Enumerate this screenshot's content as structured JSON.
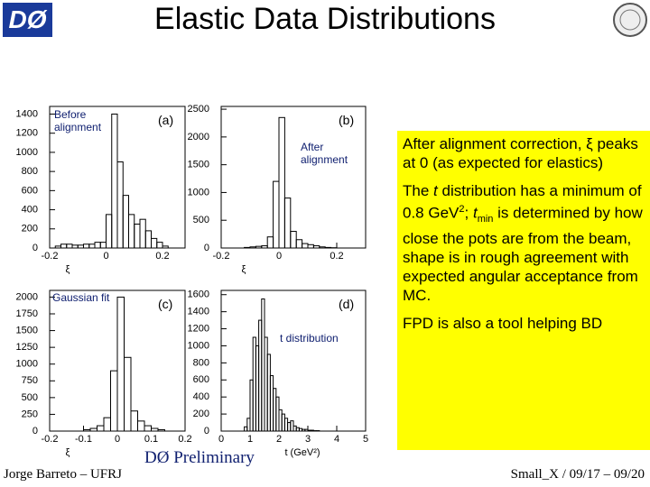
{
  "header": {
    "logo_text": "DØ",
    "title": "Elastic Data Distributions"
  },
  "chart_data": [
    {
      "type": "histogram",
      "xlabel": "ξ",
      "annotations": [
        "Before alignment",
        "(a)"
      ],
      "bins": [
        -0.2,
        -0.18,
        -0.16,
        -0.14,
        -0.12,
        -0.1,
        -0.08,
        -0.06,
        -0.04,
        -0.02,
        0,
        0.02,
        0.04,
        0.06,
        0.08,
        0.1,
        0.12,
        0.14,
        0.16,
        0.18,
        0.2,
        0.22,
        0.24,
        0.26,
        0.28
      ],
      "values": [
        0,
        20,
        40,
        40,
        30,
        30,
        40,
        40,
        60,
        60,
        350,
        1400,
        900,
        550,
        350,
        250,
        300,
        180,
        100,
        60,
        20,
        0,
        0,
        0
      ],
      "xlim": [
        -0.2,
        0.28
      ],
      "ylim": [
        0,
        1480
      ],
      "xticks": [
        -0.2,
        0,
        0.2
      ],
      "yticks": [
        0,
        200,
        400,
        600,
        800,
        1000,
        1200,
        1400
      ]
    },
    {
      "type": "histogram",
      "xlabel": "ξ",
      "annotations": [
        "(b)",
        "After alignment"
      ],
      "bins": [
        -0.2,
        -0.18,
        -0.16,
        -0.14,
        -0.12,
        -0.1,
        -0.08,
        -0.06,
        -0.04,
        -0.02,
        0,
        0.02,
        0.04,
        0.06,
        0.08,
        0.1,
        0.12,
        0.14,
        0.16,
        0.18,
        0.2,
        0.22,
        0.24,
        0.26,
        0.28,
        0.3
      ],
      "values": [
        0,
        0,
        0,
        0,
        10,
        20,
        30,
        40,
        200,
        1200,
        2350,
        900,
        300,
        150,
        80,
        60,
        40,
        20,
        10,
        5,
        0,
        0,
        0,
        0,
        0
      ],
      "xlim": [
        -0.2,
        0.3
      ],
      "ylim": [
        0,
        2550
      ],
      "xticks": [
        -0.2,
        0,
        0.2
      ],
      "yticks": [
        0,
        500,
        1000,
        1500,
        2000,
        2500
      ]
    },
    {
      "type": "histogram",
      "xlabel": "ξ",
      "annotations": [
        "Gaussian fit",
        "(c)"
      ],
      "bins": [
        -0.2,
        -0.18,
        -0.16,
        -0.14,
        -0.12,
        -0.1,
        -0.08,
        -0.06,
        -0.04,
        -0.02,
        0,
        0.02,
        0.04,
        0.06,
        0.08,
        0.1,
        0.12,
        0.14,
        0.16,
        0.18,
        0.2
      ],
      "values": [
        0,
        0,
        0,
        0,
        0,
        20,
        40,
        80,
        200,
        900,
        2000,
        1100,
        300,
        150,
        80,
        40,
        20,
        0,
        0,
        0
      ],
      "xlim": [
        -0.2,
        0.2
      ],
      "ylim": [
        0,
        2100
      ],
      "xticks": [
        -0.2,
        -0.1,
        0,
        0.1,
        0.2
      ],
      "yticks": [
        0,
        250,
        500,
        750,
        1000,
        1250,
        1500,
        1750,
        2000
      ]
    },
    {
      "type": "histogram",
      "xlabel": "t (GeV²)",
      "annotations": [
        "(d)",
        "t distribution"
      ],
      "bins": [
        0.8,
        0.9,
        1.0,
        1.1,
        1.2,
        1.3,
        1.4,
        1.5,
        1.6,
        1.7,
        1.8,
        1.9,
        2.0,
        2.1,
        2.2,
        2.3,
        2.4,
        2.5,
        2.6,
        2.7,
        2.8,
        2.9,
        3.0,
        3.1,
        3.2,
        3.3,
        3.4,
        3.5,
        3.6
      ],
      "values": [
        50,
        150,
        600,
        1100,
        1000,
        1300,
        1550,
        1100,
        900,
        650,
        500,
        400,
        250,
        200,
        150,
        100,
        120,
        60,
        40,
        30,
        20,
        20,
        10,
        10,
        5,
        5,
        0,
        0
      ],
      "xlim": [
        0,
        5
      ],
      "ylim": [
        0,
        1650
      ],
      "xticks": [
        0,
        1,
        2,
        3,
        4,
        5
      ],
      "yticks": [
        0,
        200,
        400,
        600,
        800,
        1000,
        1200,
        1400,
        1600
      ]
    }
  ],
  "notes": {
    "paragraph1": "After alignment correction, ξ peaks at 0 (as expected for elastics)",
    "paragraph2": [
      "The ",
      "t",
      " distribution has a minimum of 0.8 GeV",
      "2",
      "; ",
      "t",
      "min",
      " is determined by how close the pots are from the beam, shape is in rough agreement with expected angular acceptance from MC."
    ],
    "paragraph3": "FPD is also a tool helping BD"
  },
  "footer": {
    "author": "Jorge Barreto – UFRJ",
    "stamp": "DØ Preliminary",
    "meeting": "Small_X / 09/17 – 09/20"
  }
}
